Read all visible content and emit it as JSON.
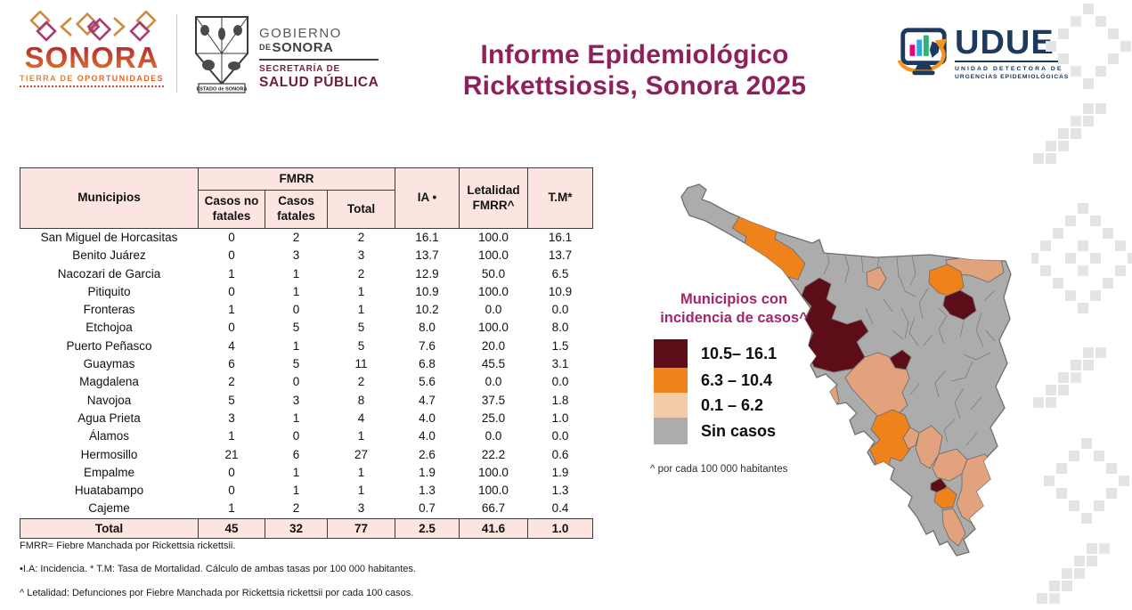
{
  "header": {
    "sonora_logo": {
      "word": "SONORA",
      "tagline_prefix": "TIERRA DE ",
      "tagline_bold": "OPORTUNIDADES"
    },
    "gobierno_logo": {
      "line1": "GOBIERNO",
      "line2_small": "DE",
      "line2": "SONORA",
      "dept_line1": "SECRETARÍA DE",
      "dept_line2": "SALUD PÚBLICA",
      "shield_caption": "ESTADO de SONORA"
    },
    "title_line1": "Informe Epidemiológico",
    "title_line2": "Rickettsiosis, Sonora 2025",
    "udue_logo": {
      "acronym": "UDUE",
      "caption_line1": "UNIDAD DETECTORA DE",
      "caption_line2": "URGENCIAS EPIDEMIOLÓGICAS"
    }
  },
  "table": {
    "headers": {
      "municipios": "Municipios",
      "fmrr_group": "FMRR",
      "casos_no_fatales": "Casos no fatales",
      "casos_fatales": "Casos fatales",
      "total": "Total",
      "ia": "IA •",
      "letalidad": "Letalidad FMRR^",
      "tm": "T.M*"
    },
    "rows": [
      {
        "name": "San Miguel de Horcasitas",
        "cnf": "0",
        "cf": "2",
        "tot": "2",
        "ia": "16.1",
        "let": "100.0",
        "tm": "16.1"
      },
      {
        "name": "Benito Juárez",
        "cnf": "0",
        "cf": "3",
        "tot": "3",
        "ia": "13.7",
        "let": "100.0",
        "tm": "13.7"
      },
      {
        "name": "Nacozari de Garcia",
        "cnf": "1",
        "cf": "1",
        "tot": "2",
        "ia": "12.9",
        "let": "50.0",
        "tm": "6.5"
      },
      {
        "name": "Pitiquito",
        "cnf": "0",
        "cf": "1",
        "tot": "1",
        "ia": "10.9",
        "let": "100.0",
        "tm": "10.9"
      },
      {
        "name": "Fronteras",
        "cnf": "1",
        "cf": "0",
        "tot": "1",
        "ia": "10.2",
        "let": "0.0",
        "tm": "0.0"
      },
      {
        "name": "Etchojoa",
        "cnf": "0",
        "cf": "5",
        "tot": "5",
        "ia": "8.0",
        "let": "100.0",
        "tm": "8.0"
      },
      {
        "name": "Puerto Peñasco",
        "cnf": "4",
        "cf": "1",
        "tot": "5",
        "ia": "7.6",
        "let": "20.0",
        "tm": "1.5"
      },
      {
        "name": "Guaymas",
        "cnf": "6",
        "cf": "5",
        "tot": "11",
        "ia": "6.8",
        "let": "45.5",
        "tm": "3.1"
      },
      {
        "name": "Magdalena",
        "cnf": "2",
        "cf": "0",
        "tot": "2",
        "ia": "5.6",
        "let": "0.0",
        "tm": "0.0"
      },
      {
        "name": "Navojoa",
        "cnf": "5",
        "cf": "3",
        "tot": "8",
        "ia": "4.7",
        "let": "37.5",
        "tm": "1.8"
      },
      {
        "name": "Agua Prieta",
        "cnf": "3",
        "cf": "1",
        "tot": "4",
        "ia": "4.0",
        "let": "25.0",
        "tm": "1.0"
      },
      {
        "name": "Álamos",
        "cnf": "1",
        "cf": "0",
        "tot": "1",
        "ia": "4.0",
        "let": "0.0",
        "tm": "0.0"
      },
      {
        "name": "Hermosillo",
        "cnf": "21",
        "cf": "6",
        "tot": "27",
        "ia": "2.6",
        "let": "22.2",
        "tm": "0.6"
      },
      {
        "name": "Empalme",
        "cnf": "0",
        "cf": "1",
        "tot": "1",
        "ia": "1.9",
        "let": "100.0",
        "tm": "1.9"
      },
      {
        "name": "Huatabampo",
        "cnf": "0",
        "cf": "1",
        "tot": "1",
        "ia": "1.3",
        "let": "100.0",
        "tm": "1.3"
      },
      {
        "name": "Cajeme",
        "cnf": "1",
        "cf": "2",
        "tot": "3",
        "ia": "0.7",
        "let": "66.7",
        "tm": "0.4"
      }
    ],
    "total_row": {
      "label": "Total",
      "cnf": "45",
      "cf": "32",
      "tot": "77",
      "ia": "2.5",
      "let": "41.6",
      "tm": "1.0"
    }
  },
  "footnotes": {
    "line1": "FMRR= Fiebre Manchada por Rickettsia rickettsii.",
    "line2": "•I.A: Incidencia. * T.M: Tasa de Mortalidad. Cálculo de ambas tasas por 100 000 habitantes.",
    "line3": "^ Letalidad: Defunciones por Fiebre Manchada por Rickettsia rickettsii por cada 100 casos."
  },
  "map_legend": {
    "title_line1": "Municipios con",
    "title_line2": "incidencia de casos^",
    "items": [
      {
        "label": "10.5– 16.1",
        "color": "#5C0D17"
      },
      {
        "label": "6.3 – 10.4",
        "color": "#F0821B"
      },
      {
        "label": "0.1 – 6.2",
        "color": "#F4CBA7"
      },
      {
        "label": "Sin casos",
        "color": "#ACACAC"
      }
    ],
    "footnote": "^ por cada 100 000 habitantes"
  },
  "colors": {
    "title_magenta": "#8E215B",
    "legend_title_magenta": "#A4256B",
    "table_header_pink": "#FCE5E0",
    "map_maroon": "#5C0D17",
    "map_orange": "#F0821B",
    "map_peach": "#E2A27D",
    "map_gray": "#ACACAC",
    "udue_navy": "#1C3A5E",
    "pattern_gray": "#E4E4E4"
  }
}
